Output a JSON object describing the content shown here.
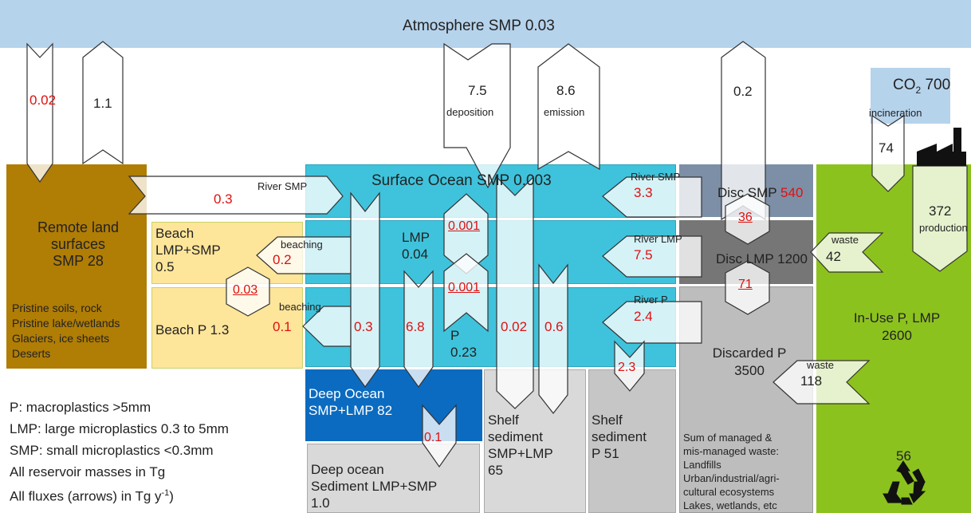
{
  "atmosphere": {
    "label": "Atmosphere SMP 0.03"
  },
  "co2": {
    "prefix": "CO",
    "sub": "2",
    "value": " 700"
  },
  "surface_ocean": {
    "label": "Surface Ocean SMP 0.003"
  },
  "remote_land": {
    "title_lines": [
      "Remote land",
      "surfaces",
      "SMP 28"
    ],
    "detail_lines": [
      "Pristine soils, rock",
      "Pristine lake/wetlands",
      "Glaciers, ice sheets",
      "Deserts"
    ]
  },
  "beach_lmp": {
    "lines": [
      "Beach",
      "LMP+SMP",
      "0.5"
    ]
  },
  "beach_p": {
    "label": "Beach P 1.3"
  },
  "lmp": {
    "lines": [
      "LMP",
      "0.04"
    ]
  },
  "p": {
    "lines": [
      "P",
      "0.23"
    ]
  },
  "deep_ocean": {
    "lines": [
      "Deep Ocean",
      "SMP+LMP 82"
    ]
  },
  "deep_sediment": {
    "lines": [
      "Deep ocean",
      "Sediment LMP+SMP",
      "1.0"
    ]
  },
  "shelf_sediment_1": {
    "lines": [
      "Shelf",
      "sediment",
      "SMP+LMP",
      "65"
    ]
  },
  "shelf_sediment_2": {
    "lines": [
      "Shelf",
      "sediment",
      "P 51"
    ]
  },
  "disc_smp": {
    "label": "Disc SMP ",
    "value": "540"
  },
  "disc_lmp": {
    "label": "Disc LMP 1200"
  },
  "discarded": {
    "lines": [
      "Discarded P",
      "3500"
    ],
    "detail_lines": [
      "Sum of managed &",
      "mis-managed waste:",
      "Landfills",
      "Urban/industrial/agri-",
      "cultural ecosystems",
      "Lakes, wetlands, etc"
    ]
  },
  "in_use": {
    "lines": [
      "In-Use P, LMP",
      "2600"
    ],
    "recycle_value": "56"
  },
  "fluxes": {
    "remote_down": "0.02",
    "remote_up": "1.1",
    "river_smp_left_label": "River SMP",
    "river_smp_left": "0.3",
    "deposition_value": "7.5",
    "deposition_label": "deposition",
    "emission_value": "8.6",
    "emission_label": "emission",
    "disc_up": "0.2",
    "incineration_label": "incineration",
    "incineration_value": "74",
    "production_value": "372",
    "production_label": "production",
    "river_smp_right_label": "River SMP",
    "river_smp_right": "3.3",
    "disc_smp_lmp": "36",
    "disc_lmp_p": "71",
    "river_lmp_label": "River LMP",
    "river_lmp": "7.5",
    "river_p_label": "River P",
    "river_p": "2.4",
    "waste1_label": "waste",
    "waste1_value": "42",
    "waste2_label": "waste",
    "waste2_value": "118",
    "beaching1_label": "beaching",
    "beaching1": "0.2",
    "beaching2_label": "beaching",
    "beaching2": "0.1",
    "beach_exchange": "0.03",
    "smp_lmp_exchange": "0.001",
    "lmp_p_exchange": "0.001",
    "sink_smp": "0.3",
    "sink_lmp": "6.8",
    "sink_p_a": "0.02",
    "sink_p_b": "0.6",
    "shelf_p_sink": "2.3",
    "deep_sink": "0.1"
  },
  "legend": [
    "P: macroplastics >5mm",
    "LMP: large microplastics 0.3 to 5mm",
    "SMP: small microplastics <0.3mm",
    "All reservoir masses in Tg"
  ],
  "legend_flux": {
    "prefix": "All fluxes (arrows) in Tg y",
    "sup": "-1",
    "suffix": ")"
  },
  "colors": {
    "atmosphere": "#b6d3ec",
    "land": "#b07d05",
    "ocean": "#3fc3dc",
    "deep_ocean": "#0b6bc0",
    "beach": "#fde59a",
    "in_use": "#8cc21e",
    "sediment": "#d4d4d4",
    "disc_smp": "#7d8fa6",
    "disc_lmp": "#767676",
    "discarded": "#bdbdbd",
    "flux_text": "#e01010"
  }
}
